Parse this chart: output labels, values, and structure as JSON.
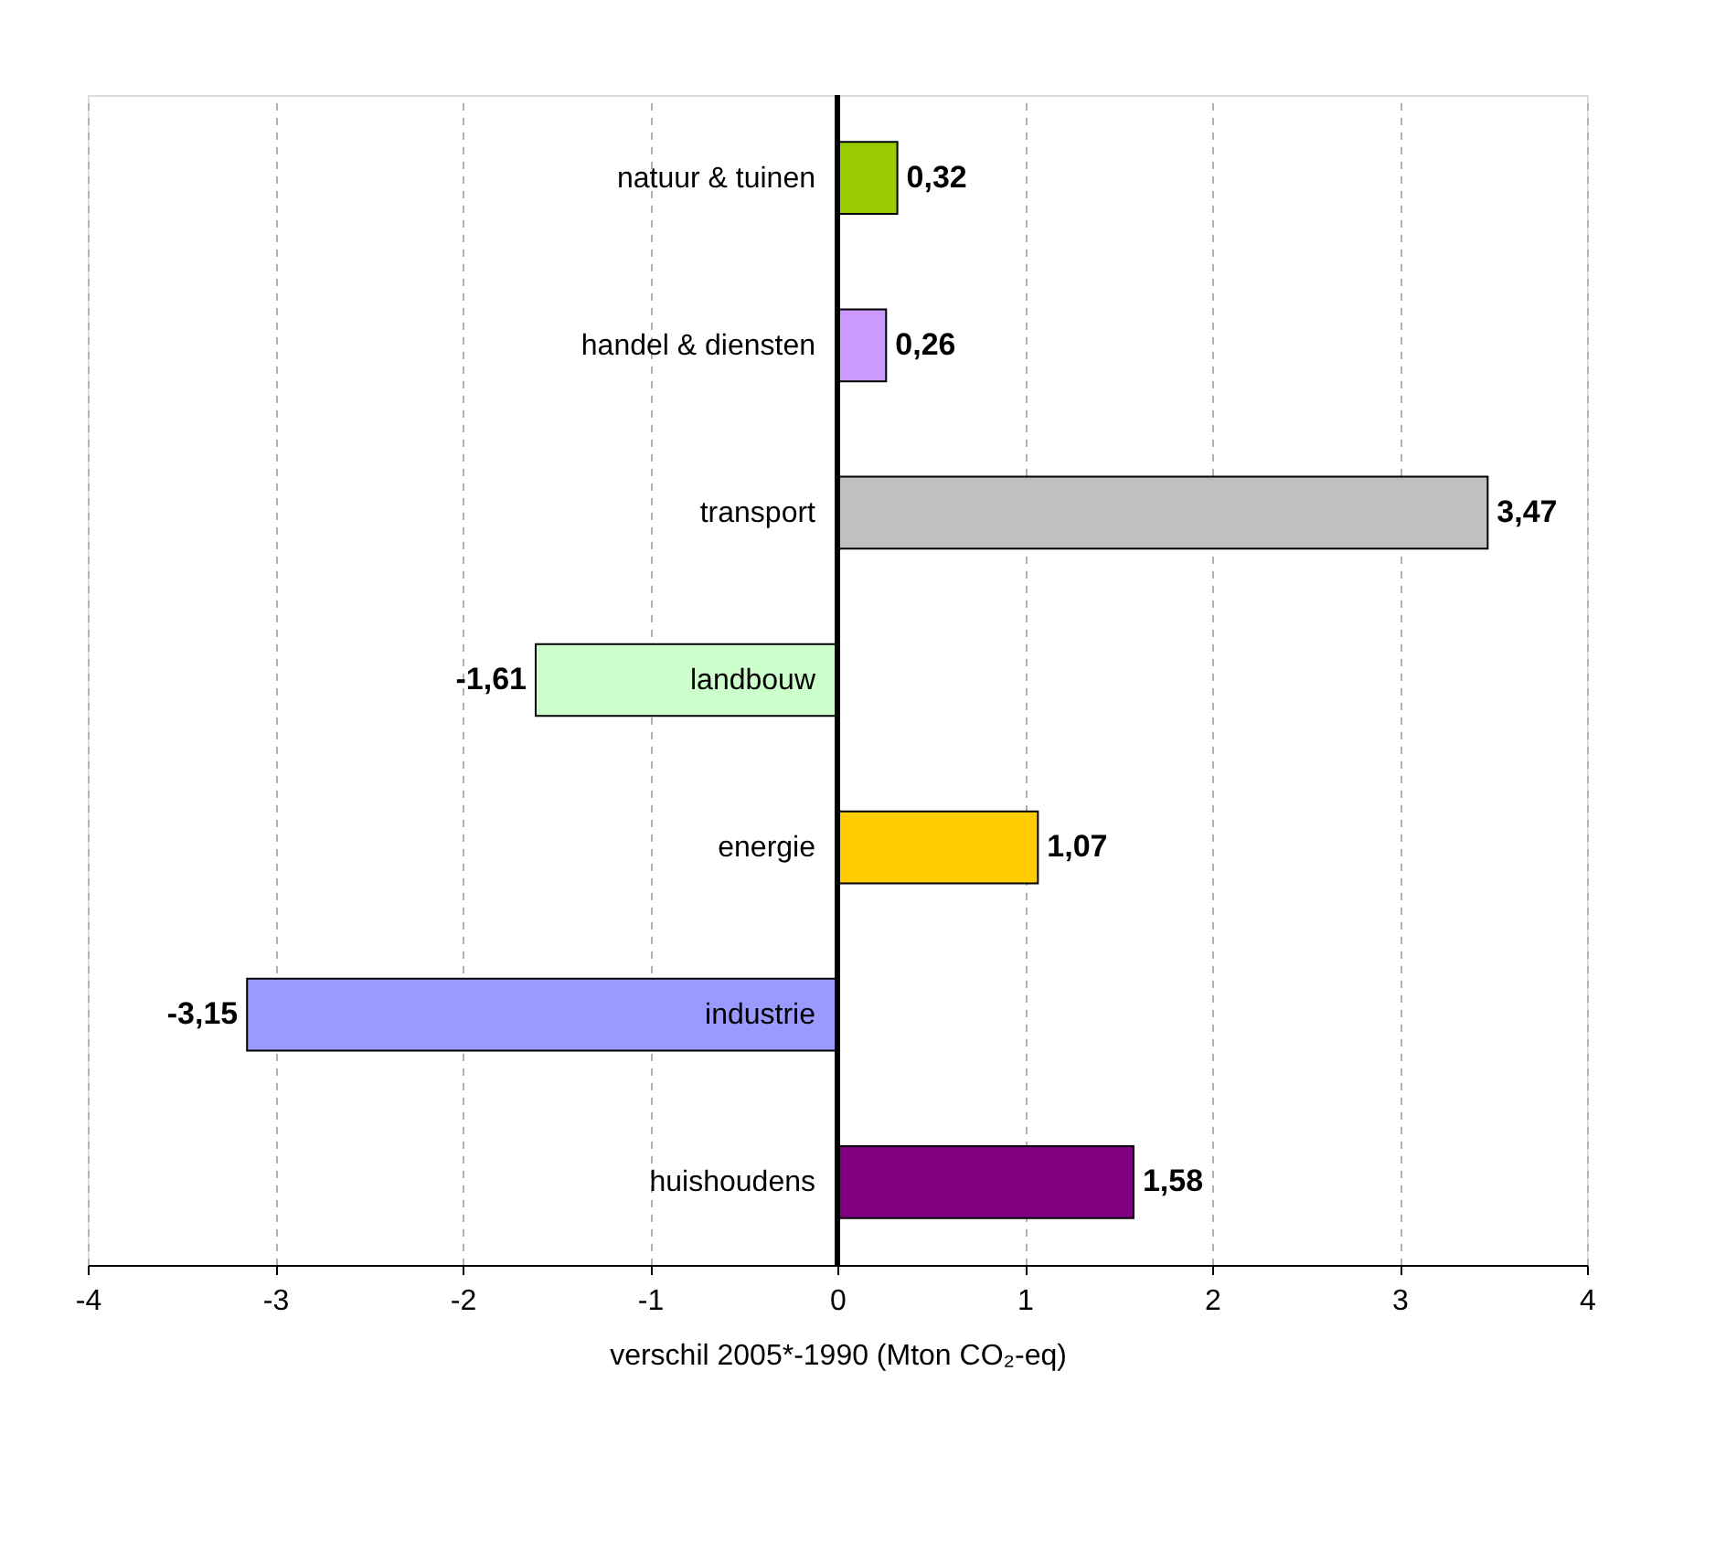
{
  "chart_data": {
    "type": "bar",
    "orientation": "horizontal",
    "xlabel": "verschil 2005*-1990 (Mton CO₂-eq)",
    "categories": [
      "natuur & tuinen",
      "handel & diensten",
      "transport",
      "landbouw",
      "energie",
      "industrie",
      "huishoudens"
    ],
    "values": [
      0.32,
      0.26,
      3.47,
      -1.61,
      1.07,
      -3.15,
      1.58
    ],
    "value_labels": [
      "0,32",
      "0,26",
      "3,47",
      "-1,61",
      "1,07",
      "-3,15",
      "1,58"
    ],
    "colors": [
      "#99cc00",
      "#cc99ff",
      "#c0c0c0",
      "#ccffcc",
      "#ffcc00",
      "#9999ff",
      "#800080"
    ],
    "xlim": [
      -4,
      4
    ],
    "xticks": [
      -4,
      -3,
      -2,
      -1,
      0,
      1,
      2,
      3,
      4
    ],
    "grid": "x"
  }
}
